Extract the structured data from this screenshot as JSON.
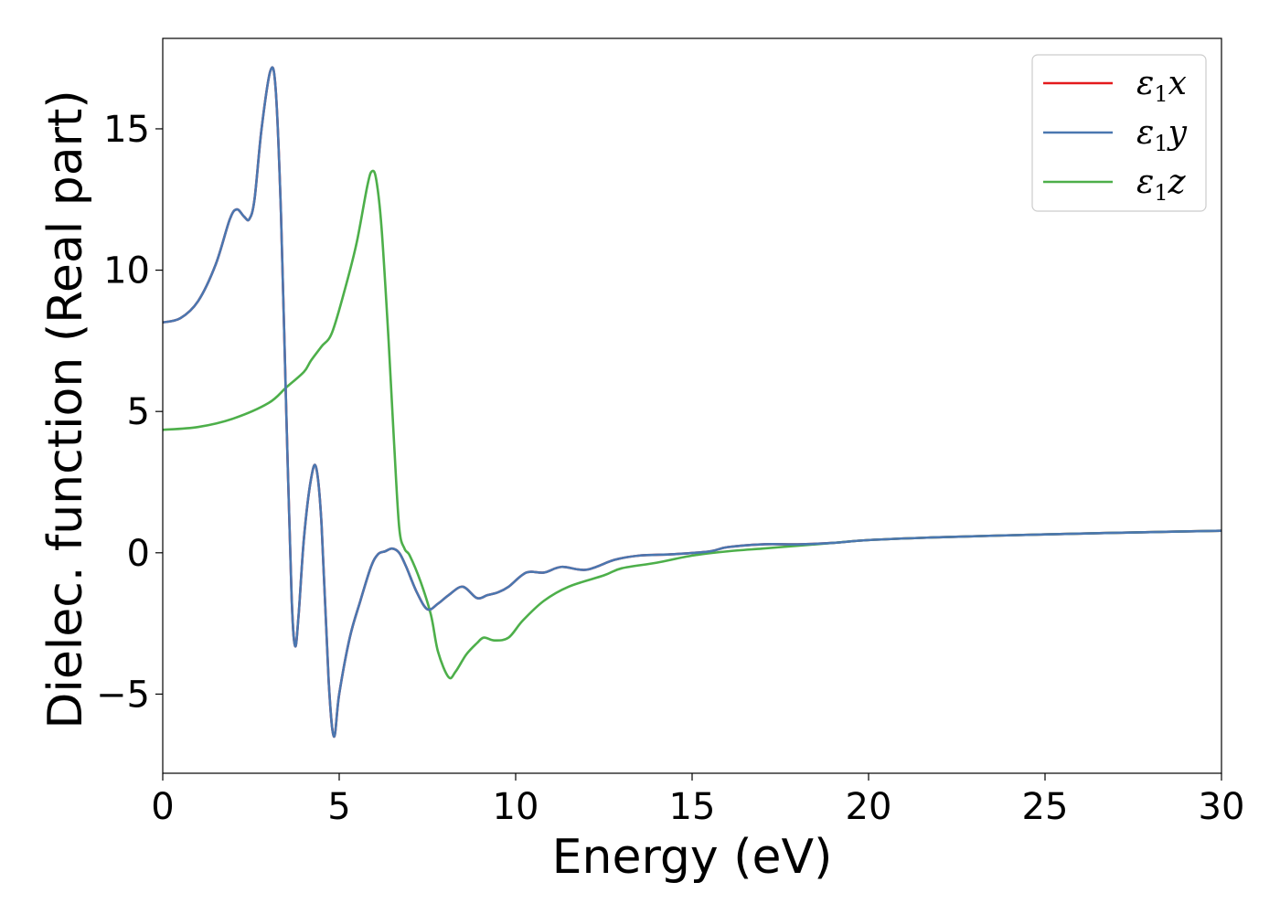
{
  "chart_data": {
    "type": "line",
    "title": "",
    "xlabel": "Energy (eV)",
    "ylabel": "Dielec. function (Real part)",
    "xlim": [
      0,
      30
    ],
    "ylim": [
      -7.8,
      18.2
    ],
    "xticks": [
      0,
      5,
      10,
      15,
      20,
      25,
      30
    ],
    "yticks": [
      -5,
      0,
      5,
      10,
      15
    ],
    "xtick_labels": [
      "0",
      "5",
      "10",
      "15",
      "20",
      "25",
      "30"
    ],
    "ytick_labels": [
      "−5",
      "0",
      "5",
      "10",
      "15"
    ],
    "grid": false,
    "legend_position": "top-right",
    "series": [
      {
        "name": "ε1x",
        "symbol": "ε",
        "subscript": "1",
        "axis": "x",
        "color": "#e41a1c",
        "points": [
          [
            0,
            8.15
          ],
          [
            0.5,
            8.3
          ],
          [
            1.0,
            8.9
          ],
          [
            1.5,
            10.2
          ],
          [
            1.9,
            11.8
          ],
          [
            2.1,
            12.15
          ],
          [
            2.3,
            11.9
          ],
          [
            2.45,
            11.8
          ],
          [
            2.6,
            12.5
          ],
          [
            2.8,
            15.0
          ],
          [
            3.05,
            17.05
          ],
          [
            3.2,
            16.4
          ],
          [
            3.35,
            12.0
          ],
          [
            3.5,
            5.0
          ],
          [
            3.65,
            -1.5
          ],
          [
            3.75,
            -3.3
          ],
          [
            3.85,
            -2.2
          ],
          [
            4.0,
            0.5
          ],
          [
            4.2,
            2.6
          ],
          [
            4.35,
            3.0
          ],
          [
            4.5,
            1.0
          ],
          [
            4.7,
            -4.5
          ],
          [
            4.85,
            -6.5
          ],
          [
            5.0,
            -5.0
          ],
          [
            5.3,
            -3.0
          ],
          [
            5.6,
            -1.7
          ],
          [
            5.9,
            -0.5
          ],
          [
            6.1,
            -0.05
          ],
          [
            6.3,
            0.05
          ],
          [
            6.5,
            0.15
          ],
          [
            6.7,
            0.0
          ],
          [
            6.9,
            -0.5
          ],
          [
            7.2,
            -1.4
          ],
          [
            7.5,
            -2.0
          ],
          [
            7.8,
            -1.8
          ],
          [
            8.1,
            -1.5
          ],
          [
            8.5,
            -1.2
          ],
          [
            8.9,
            -1.6
          ],
          [
            9.2,
            -1.5
          ],
          [
            9.5,
            -1.4
          ],
          [
            9.8,
            -1.2
          ],
          [
            10.3,
            -0.7
          ],
          [
            10.8,
            -0.7
          ],
          [
            11.3,
            -0.5
          ],
          [
            12.0,
            -0.6
          ],
          [
            12.8,
            -0.25
          ],
          [
            13.5,
            -0.1
          ],
          [
            14.5,
            -0.05
          ],
          [
            15.5,
            0.05
          ],
          [
            16.0,
            0.2
          ],
          [
            17.0,
            0.3
          ],
          [
            18.0,
            0.3
          ],
          [
            19.0,
            0.35
          ],
          [
            20.0,
            0.45
          ],
          [
            22.0,
            0.55
          ],
          [
            25.0,
            0.65
          ],
          [
            27.5,
            0.72
          ],
          [
            30.0,
            0.78
          ]
        ]
      },
      {
        "name": "ε1y",
        "symbol": "ε",
        "subscript": "1",
        "axis": "y",
        "color": "#4a77b0",
        "points": [
          [
            0,
            8.15
          ],
          [
            0.5,
            8.3
          ],
          [
            1.0,
            8.9
          ],
          [
            1.5,
            10.2
          ],
          [
            1.9,
            11.8
          ],
          [
            2.1,
            12.15
          ],
          [
            2.3,
            11.9
          ],
          [
            2.45,
            11.8
          ],
          [
            2.6,
            12.5
          ],
          [
            2.8,
            15.0
          ],
          [
            3.05,
            17.05
          ],
          [
            3.2,
            16.4
          ],
          [
            3.35,
            12.0
          ],
          [
            3.5,
            5.0
          ],
          [
            3.65,
            -1.5
          ],
          [
            3.75,
            -3.3
          ],
          [
            3.85,
            -2.2
          ],
          [
            4.0,
            0.5
          ],
          [
            4.2,
            2.6
          ],
          [
            4.35,
            3.0
          ],
          [
            4.5,
            1.0
          ],
          [
            4.7,
            -4.5
          ],
          [
            4.85,
            -6.5
          ],
          [
            5.0,
            -5.0
          ],
          [
            5.3,
            -3.0
          ],
          [
            5.6,
            -1.7
          ],
          [
            5.9,
            -0.5
          ],
          [
            6.1,
            -0.05
          ],
          [
            6.3,
            0.05
          ],
          [
            6.5,
            0.15
          ],
          [
            6.7,
            0.0
          ],
          [
            6.9,
            -0.5
          ],
          [
            7.2,
            -1.4
          ],
          [
            7.5,
            -2.0
          ],
          [
            7.8,
            -1.8
          ],
          [
            8.1,
            -1.5
          ],
          [
            8.5,
            -1.2
          ],
          [
            8.9,
            -1.6
          ],
          [
            9.2,
            -1.5
          ],
          [
            9.5,
            -1.4
          ],
          [
            9.8,
            -1.2
          ],
          [
            10.3,
            -0.7
          ],
          [
            10.8,
            -0.7
          ],
          [
            11.3,
            -0.5
          ],
          [
            12.0,
            -0.6
          ],
          [
            12.8,
            -0.25
          ],
          [
            13.5,
            -0.1
          ],
          [
            14.5,
            -0.05
          ],
          [
            15.5,
            0.05
          ],
          [
            16.0,
            0.2
          ],
          [
            17.0,
            0.3
          ],
          [
            18.0,
            0.3
          ],
          [
            19.0,
            0.35
          ],
          [
            20.0,
            0.45
          ],
          [
            22.0,
            0.55
          ],
          [
            25.0,
            0.65
          ],
          [
            27.5,
            0.72
          ],
          [
            30.0,
            0.78
          ]
        ]
      },
      {
        "name": "ε1z",
        "symbol": "ε",
        "subscript": "1",
        "axis": "z",
        "color": "#4daf4a",
        "points": [
          [
            0,
            4.35
          ],
          [
            1.0,
            4.45
          ],
          [
            2.0,
            4.75
          ],
          [
            3.0,
            5.3
          ],
          [
            3.5,
            5.85
          ],
          [
            4.0,
            6.4
          ],
          [
            4.2,
            6.8
          ],
          [
            4.5,
            7.3
          ],
          [
            4.8,
            7.8
          ],
          [
            5.2,
            9.5
          ],
          [
            5.5,
            11.0
          ],
          [
            5.8,
            13.0
          ],
          [
            5.93,
            13.5
          ],
          [
            6.05,
            13.2
          ],
          [
            6.2,
            11.5
          ],
          [
            6.4,
            7.5
          ],
          [
            6.55,
            4.0
          ],
          [
            6.7,
            0.9
          ],
          [
            6.85,
            0.15
          ],
          [
            7.0,
            -0.1
          ],
          [
            7.3,
            -1.0
          ],
          [
            7.6,
            -2.2
          ],
          [
            7.8,
            -3.5
          ],
          [
            8.1,
            -4.4
          ],
          [
            8.3,
            -4.2
          ],
          [
            8.6,
            -3.6
          ],
          [
            8.9,
            -3.2
          ],
          [
            9.1,
            -3.0
          ],
          [
            9.4,
            -3.1
          ],
          [
            9.8,
            -3.0
          ],
          [
            10.2,
            -2.4
          ],
          [
            10.8,
            -1.7
          ],
          [
            11.5,
            -1.2
          ],
          [
            12.5,
            -0.8
          ],
          [
            13.0,
            -0.55
          ],
          [
            14.0,
            -0.35
          ],
          [
            15.0,
            -0.1
          ],
          [
            16.0,
            0.05
          ],
          [
            17.0,
            0.15
          ],
          [
            18.0,
            0.25
          ],
          [
            19.0,
            0.35
          ],
          [
            20.0,
            0.45
          ],
          [
            22.0,
            0.55
          ],
          [
            25.0,
            0.65
          ],
          [
            27.5,
            0.72
          ],
          [
            30.0,
            0.78
          ]
        ]
      }
    ]
  }
}
